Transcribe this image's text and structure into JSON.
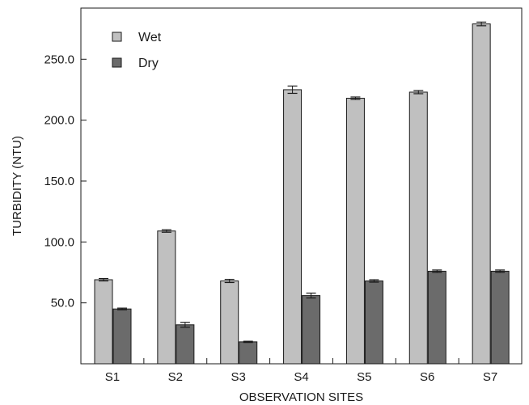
{
  "chart_data": {
    "type": "bar",
    "xlabel": "OBSERVATION SITES",
    "ylabel": "TURBIDITY (NTU)",
    "categories": [
      "S1",
      "S2",
      "S3",
      "S4",
      "S5",
      "S6",
      "S7"
    ],
    "ylim": [
      0,
      292
    ],
    "yticks": [
      50,
      100,
      150,
      200,
      250
    ],
    "ytick_labels": [
      "50.0",
      "100.0",
      "150.0",
      "200.0",
      "250.0"
    ],
    "grid": false,
    "legend_position": "top-left",
    "series": [
      {
        "name": "Wet",
        "color": "#c0c0c0",
        "values": [
          69,
          109,
          68,
          225,
          218,
          223,
          279
        ],
        "errors": [
          1.0,
          1.0,
          1.3,
          3.0,
          1.0,
          1.3,
          1.5
        ]
      },
      {
        "name": "Dry",
        "color": "#6b6b6b",
        "values": [
          45,
          32,
          18,
          56,
          68,
          76,
          76
        ],
        "errors": [
          0.7,
          2.0,
          0.5,
          2.0,
          1.0,
          1.0,
          1.0
        ]
      }
    ]
  }
}
